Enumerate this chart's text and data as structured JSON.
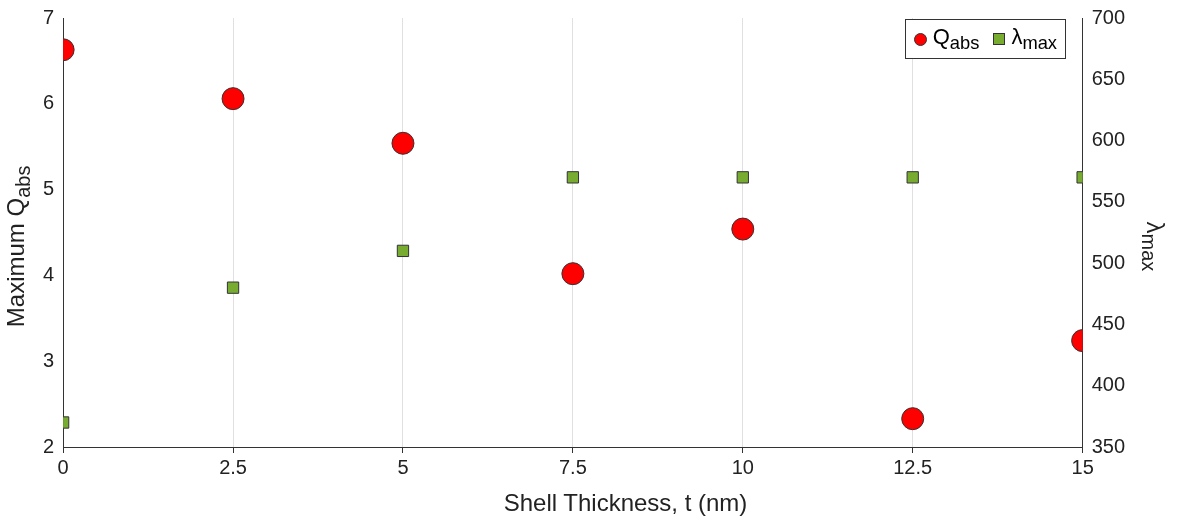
{
  "chart_data": {
    "type": "scatter",
    "xlabel": "Shell Thickness, t (nm)",
    "ylabel": "Maximum Q$_{abs}$",
    "y2label": "λ$_{max}$",
    "x": [
      0,
      2.5,
      5,
      7.5,
      10,
      12.5,
      15
    ],
    "series": [
      {
        "name": "Q$_{abs}$",
        "color": "#ff0000",
        "marker": "circle",
        "values": [
          6.63,
          6.06,
          5.54,
          4.02,
          4.54,
          2.33,
          3.24
        ]
      },
      {
        "name": "λ$_{max}$",
        "color": "#77ac30",
        "marker": "square",
        "axis": "y2",
        "values": [
          370,
          480,
          510,
          570,
          570,
          570,
          570
        ]
      }
    ],
    "xlim": [
      0,
      15
    ],
    "xticks": [
      0,
      2.5,
      5,
      7.5,
      10,
      12.5,
      15
    ],
    "ylim": [
      2,
      7
    ],
    "yticks": [
      2,
      3,
      4,
      5,
      6,
      7
    ],
    "y2lim": [
      350,
      700
    ],
    "y2ticks": [
      350,
      400,
      450,
      500,
      550,
      600,
      650,
      700
    ],
    "grid": "x",
    "legend": "top right"
  }
}
